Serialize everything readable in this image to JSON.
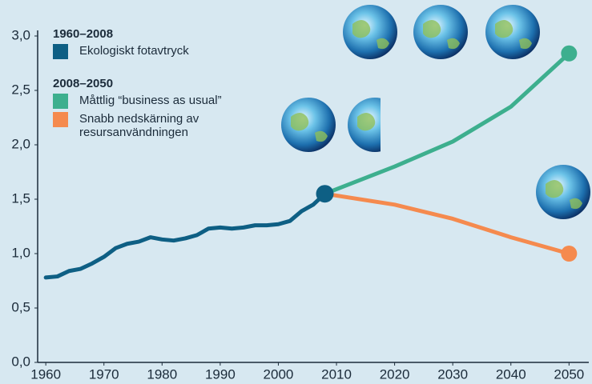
{
  "chart_data": {
    "type": "line",
    "xlim": [
      1958.6,
      2053.4
    ],
    "xticks": [
      1960,
      1970,
      1980,
      1990,
      2000,
      2010,
      2020,
      2030,
      2040,
      2050
    ],
    "ylim": [
      0,
      3.0
    ],
    "yticks": [
      {
        "value": 0,
        "label": "0,0"
      },
      {
        "value": 0.5,
        "label": "0,5"
      },
      {
        "value": 1.0,
        "label": "1,0"
      },
      {
        "value": 1.5,
        "label": "1,5"
      },
      {
        "value": 2.0,
        "label": "2,0"
      },
      {
        "value": 2.5,
        "label": "2,5"
      },
      {
        "value": 3.0,
        "label": "3,0"
      }
    ],
    "legend_headings": [
      "1960–2008",
      "2008–2050"
    ],
    "series": [
      {
        "name": "Ekologiskt fotavtryck",
        "color": "#0e5f84",
        "x": [
          1960,
          1962,
          1964,
          1966,
          1968,
          1970,
          1972,
          1974,
          1976,
          1978,
          1980,
          1982,
          1984,
          1986,
          1988,
          1990,
          1992,
          1994,
          1996,
          1998,
          2000,
          2002,
          2004,
          2006,
          2008
        ],
        "values": [
          0.78,
          0.79,
          0.84,
          0.86,
          0.91,
          0.97,
          1.05,
          1.09,
          1.11,
          1.15,
          1.13,
          1.12,
          1.14,
          1.17,
          1.23,
          1.24,
          1.23,
          1.24,
          1.26,
          1.26,
          1.27,
          1.3,
          1.39,
          1.45,
          1.55
        ]
      },
      {
        "name": "Måttlig “business as usual”",
        "color": "#3daf8e",
        "x": [
          2008,
          2020,
          2030,
          2040,
          2050
        ],
        "values": [
          1.55,
          1.8,
          2.03,
          2.35,
          2.84
        ]
      },
      {
        "name": "Snabb nedskärning av resursanvändningen",
        "color": "#f58a4e",
        "x": [
          2008,
          2020,
          2030,
          2040,
          2050
        ],
        "values": [
          1.55,
          1.45,
          1.32,
          1.15,
          1.0
        ]
      }
    ]
  }
}
